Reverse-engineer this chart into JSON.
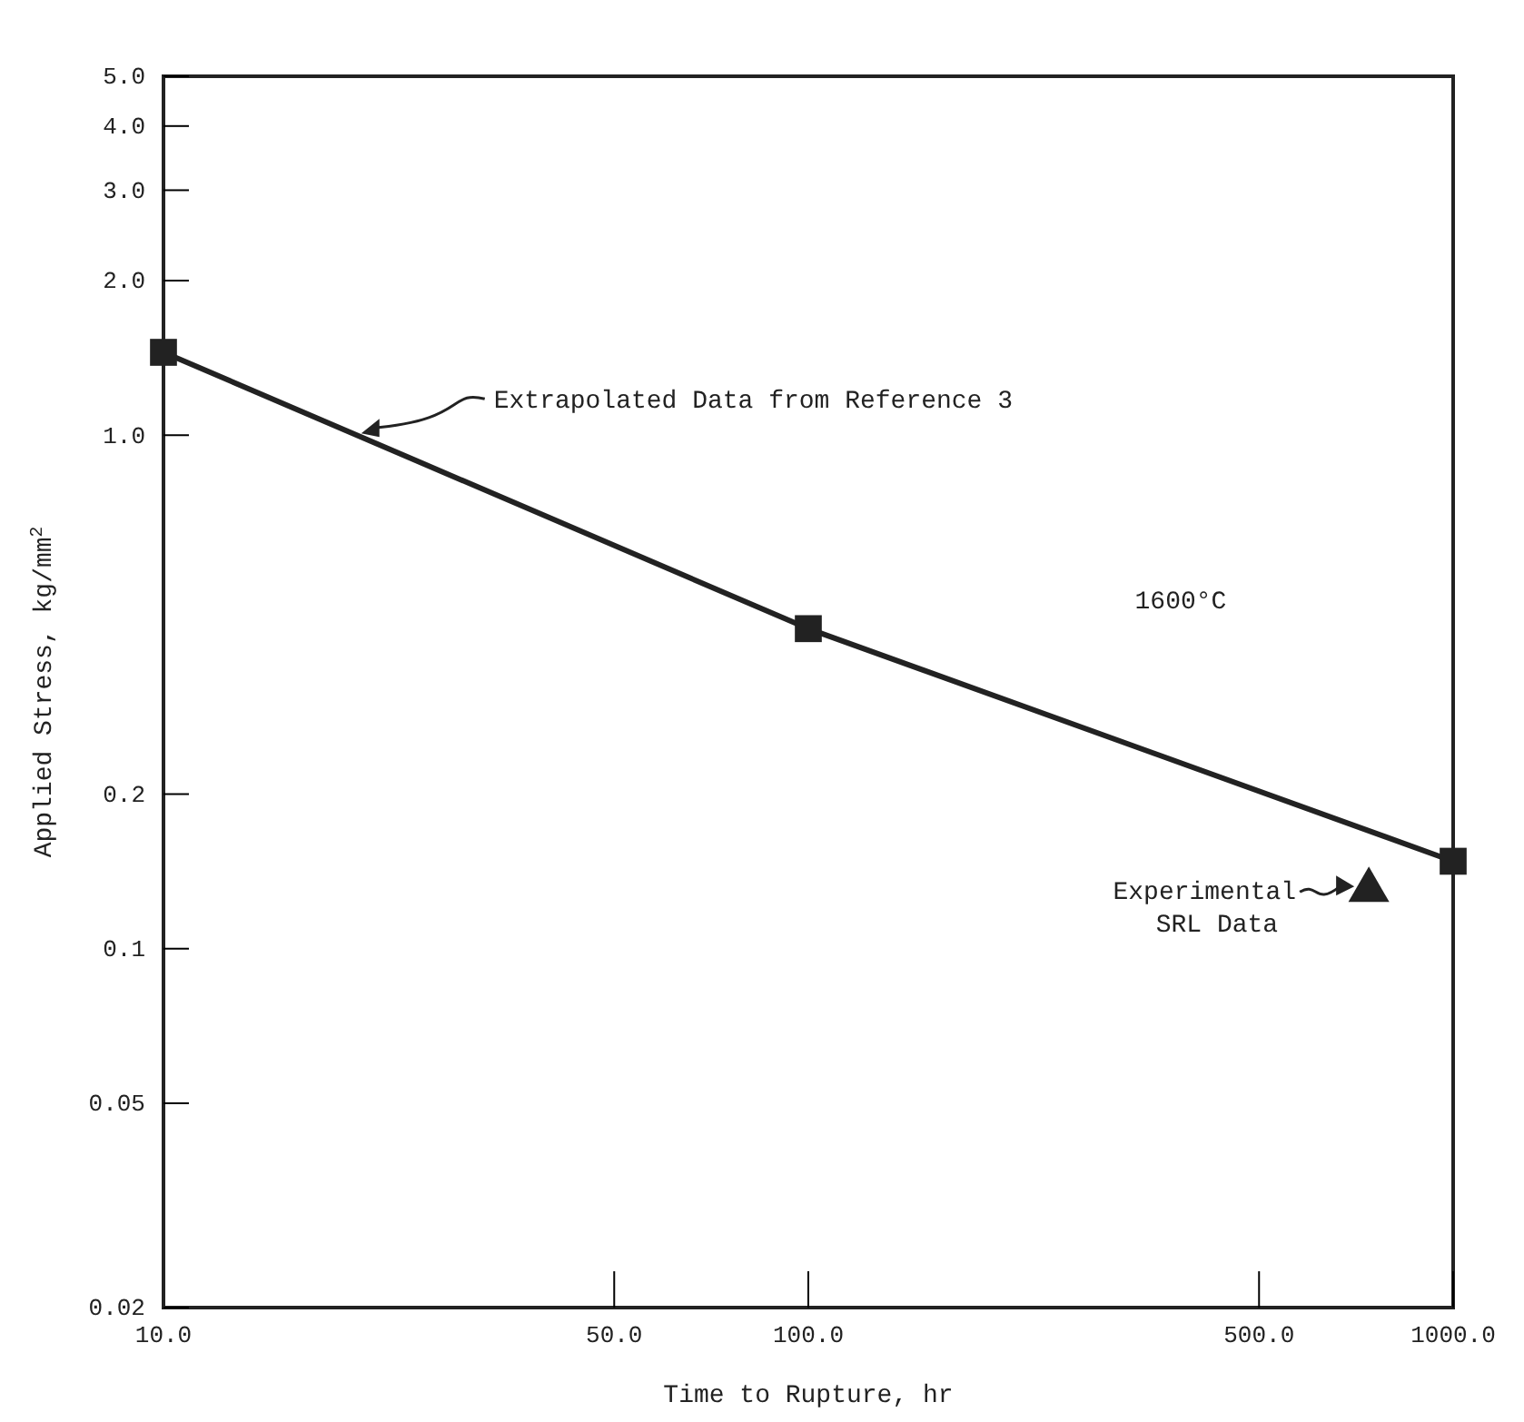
{
  "chart_data": {
    "type": "line",
    "xlabel": "Time to Rupture, hr",
    "ylabel": "Applied Stress, kg/mm$^{2}$",
    "log": "xy",
    "xlim": [
      10,
      1000
    ],
    "ylim": [
      0.02,
      5
    ],
    "xticks": [
      {
        "value": 10,
        "label": "10.0"
      },
      {
        "value": 50,
        "label": "50.0"
      },
      {
        "value": 100,
        "label": "100.0"
      },
      {
        "value": 500,
        "label": "500.0"
      },
      {
        "value": 1000,
        "label": "1000.0"
      }
    ],
    "yticks": [
      0.02,
      0.05,
      0.1,
      0.2,
      {
        "value": 1,
        "label": "1.0"
      },
      {
        "value": 2,
        "label": "2.0"
      },
      {
        "value": 3,
        "label": "3.0"
      },
      {
        "value": 4,
        "label": "4.0"
      },
      {
        "value": 5,
        "label": "5.0"
      }
    ],
    "grid": false,
    "series": [
      {
        "color": "#222222",
        "marker": "square",
        "line_style": "solid",
        "x": [
          10,
          100,
          1000
        ],
        "values": [
          1.45,
          0.42,
          0.148
        ]
      },
      {
        "type": "scatter",
        "color": "#222222",
        "marker": "triangle",
        "x": [
          740
        ],
        "values": [
          0.13
        ]
      }
    ],
    "annotations": [
      {
        "text": "Extrapolated Data from Reference 3",
        "x": 20,
        "y": 1.0
      },
      "1600°C",
      {
        "text": "Experimental SRL Data",
        "x": 740,
        "y": 0.13
      }
    ]
  }
}
